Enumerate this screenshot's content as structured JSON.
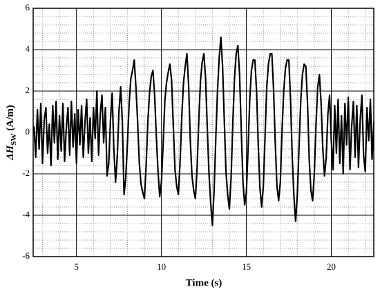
{
  "chart_data": {
    "type": "line",
    "x_label": "Time (s)",
    "y_label": "ΔH",
    "y_label_sub": "SW",
    "y_label_unit": "(A/m)",
    "xlim": [
      2.45,
      22.5
    ],
    "xticks": [
      5,
      10,
      15,
      20
    ],
    "ylim": [
      -6,
      6
    ],
    "yticks": [
      -6,
      -4,
      -2,
      0,
      2,
      4,
      6
    ],
    "xminorticks": [
      3,
      4,
      6,
      7,
      8,
      9,
      11,
      12,
      13,
      14,
      16,
      17,
      18,
      19,
      21,
      22
    ],
    "yminorticks": [
      -5.6,
      -5.2,
      -4.8,
      -4.4,
      -3.6,
      -3.2,
      -2.8,
      -2.4,
      -1.6,
      -1.2,
      -0.8,
      -0.4,
      0.4,
      0.8,
      1.2,
      1.6,
      2.4,
      2.8,
      3.2,
      3.6,
      4.4,
      4.8,
      5.2,
      5.6
    ],
    "grid": true,
    "series": [
      {
        "color": "#000000",
        "x": [
          2.5,
          2.6,
          2.7,
          2.8,
          2.9,
          3.0,
          3.1,
          3.2,
          3.3,
          3.4,
          3.5,
          3.6,
          3.7,
          3.8,
          3.9,
          4.0,
          4.1,
          4.2,
          4.3,
          4.4,
          4.5,
          4.6,
          4.7,
          4.8,
          4.9,
          5.0,
          5.1,
          5.2,
          5.3,
          5.4,
          5.5,
          5.6,
          5.7,
          5.8,
          5.9,
          6.0,
          6.1,
          6.2,
          6.3,
          6.4,
          6.5,
          6.6,
          6.7,
          6.8,
          6.9,
          7.0,
          7.1,
          7.2,
          7.3,
          7.4,
          7.5,
          7.6,
          7.7,
          7.8,
          7.9,
          8.0,
          8.1,
          8.2,
          8.3,
          8.4,
          8.5,
          8.6,
          8.7,
          8.8,
          8.9,
          9.0,
          9.1,
          9.2,
          9.3,
          9.4,
          9.5,
          9.6,
          9.7,
          9.8,
          9.9,
          10.0,
          10.1,
          10.2,
          10.3,
          10.4,
          10.5,
          10.6,
          10.7,
          10.8,
          10.9,
          11.0,
          11.1,
          11.2,
          11.3,
          11.4,
          11.5,
          11.6,
          11.7,
          11.8,
          11.9,
          12.0,
          12.1,
          12.2,
          12.3,
          12.4,
          12.5,
          12.6,
          12.7,
          12.8,
          12.9,
          13.0,
          13.1,
          13.2,
          13.3,
          13.4,
          13.5,
          13.6,
          13.7,
          13.8,
          13.9,
          14.0,
          14.1,
          14.2,
          14.3,
          14.4,
          14.5,
          14.6,
          14.7,
          14.8,
          14.9,
          15.0,
          15.1,
          15.2,
          15.3,
          15.4,
          15.5,
          15.6,
          15.7,
          15.8,
          15.9,
          16.0,
          16.1,
          16.2,
          16.3,
          16.4,
          16.5,
          16.6,
          16.7,
          16.8,
          16.9,
          17.0,
          17.1,
          17.2,
          17.3,
          17.4,
          17.5,
          17.6,
          17.7,
          17.8,
          17.9,
          18.0,
          18.1,
          18.2,
          18.3,
          18.4,
          18.5,
          18.6,
          18.7,
          18.8,
          18.9,
          19.0,
          19.1,
          19.2,
          19.3,
          19.4,
          19.5,
          19.6,
          19.7,
          19.8,
          19.9,
          20.0,
          20.1,
          20.2,
          20.3,
          20.4,
          20.5,
          20.6,
          20.7,
          20.8,
          20.9,
          21.0,
          21.1,
          21.2,
          21.3,
          21.4,
          21.5,
          21.6,
          21.7,
          21.8,
          21.9,
          22.0,
          22.1,
          22.2,
          22.3,
          22.4,
          22.5
        ],
        "values": [
          0.3,
          -1.2,
          1.1,
          -0.8,
          1.4,
          -1.5,
          0.6,
          1.2,
          -1.0,
          0.4,
          -1.6,
          1.3,
          -0.5,
          1.5,
          -1.3,
          0.8,
          -0.9,
          1.4,
          -1.4,
          0.2,
          1.2,
          -1.1,
          1.5,
          -0.7,
          0.9,
          -1.5,
          1.1,
          -0.6,
          1.3,
          -1.2,
          0.5,
          1.6,
          -1.0,
          0.7,
          -1.4,
          1.2,
          -0.3,
          2.0,
          -1.1,
          0.9,
          1.8,
          -0.5,
          1.2,
          -2.1,
          -1.5,
          0.6,
          1.9,
          -0.8,
          -2.4,
          -1.2,
          1.0,
          2.2,
          0.5,
          -3.0,
          -2.2,
          -0.5,
          1.4,
          2.6,
          3.0,
          3.5,
          2.2,
          0.5,
          -1.5,
          -2.5,
          -2.9,
          -3.2,
          -1.6,
          0.5,
          1.9,
          2.7,
          3.0,
          1.8,
          -0.2,
          -1.9,
          -3.1,
          -2.4,
          -0.6,
          1.5,
          2.4,
          2.9,
          3.3,
          2.5,
          0.3,
          -1.8,
          -2.6,
          -3.0,
          -1.4,
          0.8,
          2.4,
          3.2,
          3.8,
          2.3,
          -0.4,
          -2.1,
          -2.8,
          -3.2,
          -1.7,
          0.6,
          2.5,
          3.4,
          3.8,
          2.6,
          0.2,
          -2.0,
          -3.4,
          -4.5,
          -2.8,
          -0.3,
          2.0,
          3.6,
          4.6,
          3.2,
          0.6,
          -1.9,
          -3.0,
          -3.7,
          -2.2,
          0.4,
          2.6,
          3.8,
          4.2,
          2.8,
          0.1,
          -2.4,
          -3.5,
          -2.9,
          -0.8,
          1.6,
          3.0,
          3.5,
          3.5,
          2.0,
          -0.6,
          -2.7,
          -3.6,
          -2.6,
          -0.2,
          2.2,
          3.3,
          3.8,
          3.8,
          2.1,
          -0.5,
          -2.6,
          -3.3,
          -2.4,
          0.1,
          2.0,
          3.1,
          3.5,
          3.5,
          1.6,
          -1.2,
          -3.1,
          -4.3,
          -3.0,
          -0.7,
          1.5,
          2.8,
          3.3,
          3.2,
          1.4,
          -1.3,
          -2.8,
          -3.3,
          -2.0,
          0.4,
          2.2,
          2.8,
          1.4,
          -0.8,
          -2.1,
          -1.2,
          0.9,
          1.8,
          -0.4,
          -1.8,
          1.3,
          -1.0,
          1.6,
          -1.5,
          0.8,
          -2.0,
          1.4,
          -0.6,
          1.7,
          -1.8,
          0.3,
          1.5,
          -1.2,
          1.3,
          -1.7,
          0.6,
          1.8,
          -1.1,
          -1.9,
          1.2,
          -0.4,
          1.6,
          -1.3,
          0.5
        ]
      }
    ]
  }
}
